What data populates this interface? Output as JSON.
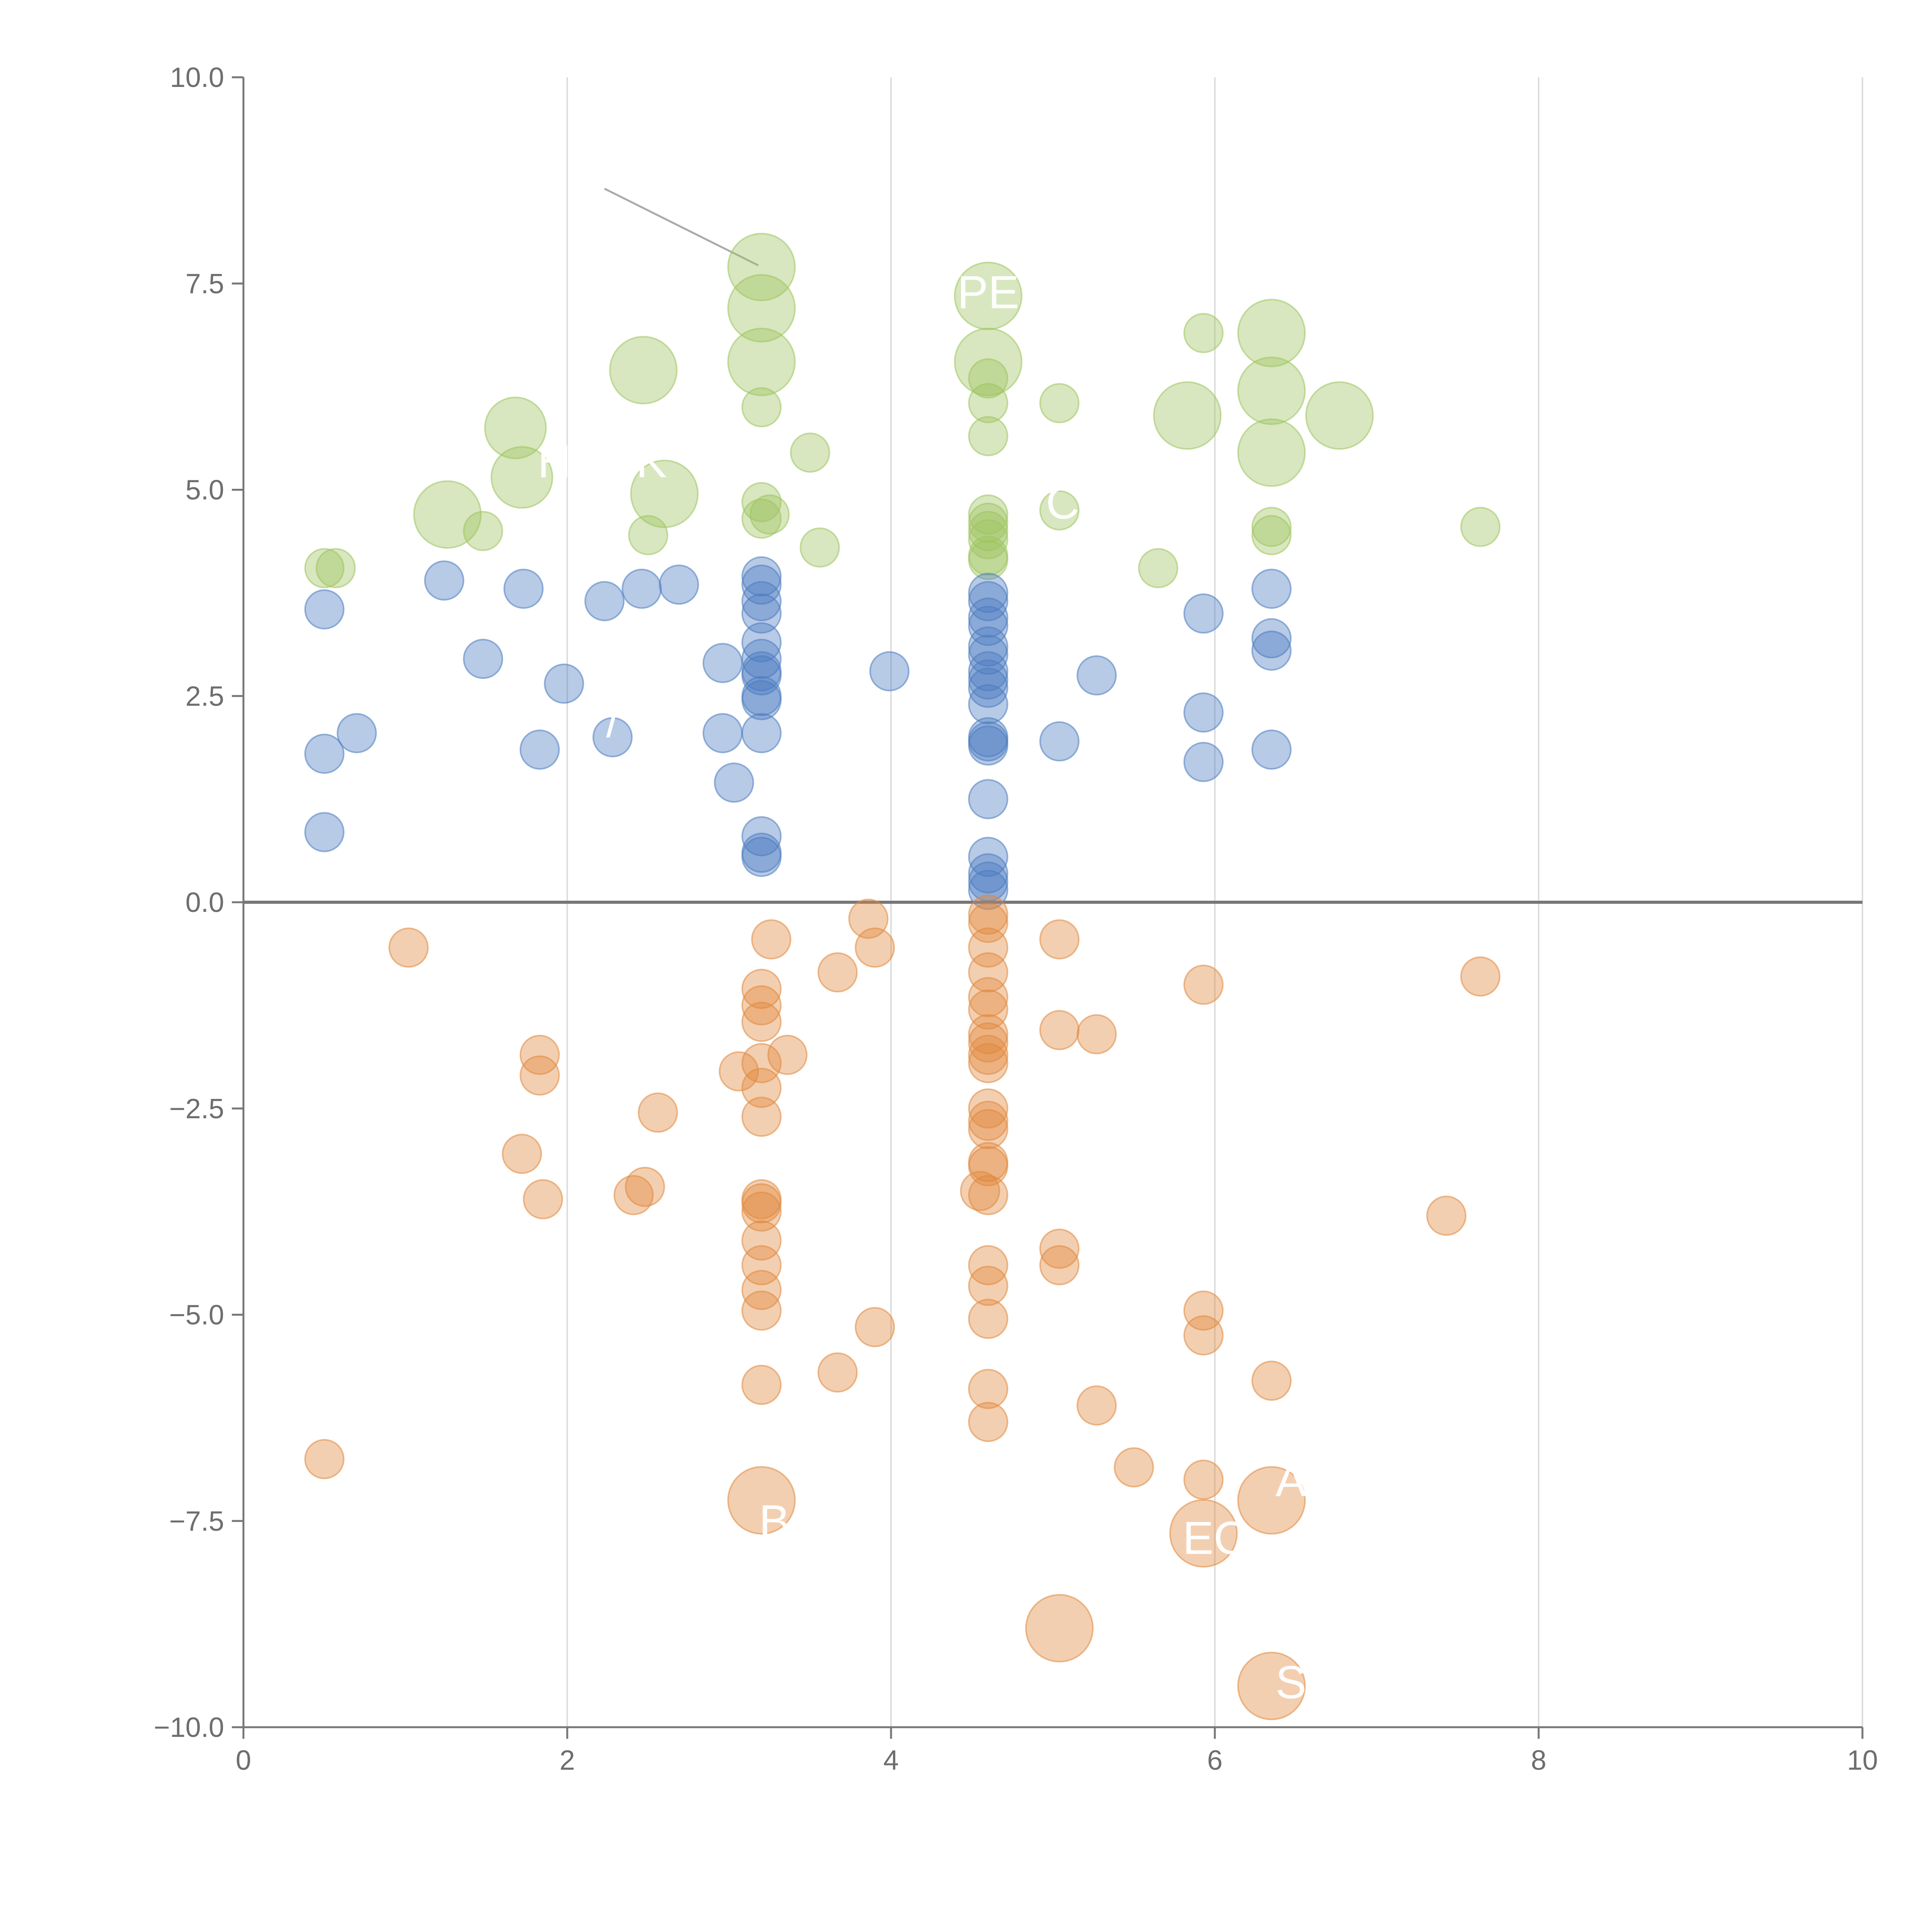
{
  "chart_data": {
    "type": "scatter",
    "title": "",
    "xlabel": "",
    "ylabel": "",
    "xlim": [
      0,
      10
    ],
    "ylim": [
      -10,
      10
    ],
    "grid": "x-only",
    "x_ticks": [
      0,
      2,
      4,
      6,
      8,
      10
    ],
    "x_tick_labels": [
      "0",
      "2",
      "4",
      "6",
      "8",
      "10"
    ],
    "y_ticks": [
      -10,
      -7.5,
      -5,
      -2.5,
      0,
      2.5,
      5,
      7.5,
      10
    ],
    "y_tick_labels": [
      "−10.0",
      "−7.5",
      "−5.0",
      "−2.5",
      "0.0",
      "2.5",
      "5.0",
      "7.5",
      "10.0"
    ],
    "baseline": 0,
    "colors": {
      "green": "#9dc45f",
      "blue": "#4a7bc0",
      "orange": "#e0883c",
      "axis": "#777777",
      "grid": "#dddddd",
      "leader": "#aaaaaa",
      "label": "#ffffff"
    },
    "series": [
      {
        "name": "green",
        "color": "#9dc45f",
        "points": [
          {
            "x": 3.2,
            "y": 7.7,
            "s": 3
          },
          {
            "x": 3.2,
            "y": 7.2,
            "s": 3
          },
          {
            "x": 3.2,
            "y": 6.55,
            "s": 3
          },
          {
            "x": 3.2,
            "y": 6.0,
            "s": 1
          },
          {
            "x": 4.6,
            "y": 7.35,
            "s": 3
          },
          {
            "x": 4.6,
            "y": 6.55,
            "s": 3
          },
          {
            "x": 4.6,
            "y": 6.35,
            "s": 1
          },
          {
            "x": 4.6,
            "y": 6.05,
            "s": 1
          },
          {
            "x": 4.6,
            "y": 5.65,
            "s": 1
          },
          {
            "x": 4.6,
            "y": 4.7,
            "s": 1
          },
          {
            "x": 4.6,
            "y": 4.6,
            "s": 1
          },
          {
            "x": 4.6,
            "y": 4.5,
            "s": 1
          },
          {
            "x": 4.6,
            "y": 4.4,
            "s": 1
          },
          {
            "x": 4.6,
            "y": 4.2,
            "s": 1
          },
          {
            "x": 4.6,
            "y": 4.15,
            "s": 1
          },
          {
            "x": 2.47,
            "y": 6.45,
            "s": 3
          },
          {
            "x": 1.68,
            "y": 5.75,
            "s": 2.5
          },
          {
            "x": 1.72,
            "y": 5.15,
            "s": 2.5
          },
          {
            "x": 1.26,
            "y": 4.7,
            "s": 3
          },
          {
            "x": 1.48,
            "y": 4.5,
            "s": 1
          },
          {
            "x": 2.6,
            "y": 4.95,
            "s": 3
          },
          {
            "x": 2.5,
            "y": 4.45,
            "s": 1
          },
          {
            "x": 0.5,
            "y": 4.05,
            "s": 1
          },
          {
            "x": 0.57,
            "y": 4.05,
            "s": 1
          },
          {
            "x": 3.5,
            "y": 5.45,
            "s": 1
          },
          {
            "x": 3.56,
            "y": 4.3,
            "s": 1
          },
          {
            "x": 3.2,
            "y": 4.85,
            "s": 1
          },
          {
            "x": 3.2,
            "y": 4.65,
            "s": 1
          },
          {
            "x": 3.25,
            "y": 4.7,
            "s": 1
          },
          {
            "x": 5.04,
            "y": 6.05,
            "s": 1
          },
          {
            "x": 5.04,
            "y": 4.75,
            "s": 1
          },
          {
            "x": 5.65,
            "y": 4.05,
            "s": 1
          },
          {
            "x": 5.83,
            "y": 5.9,
            "s": 3
          },
          {
            "x": 5.93,
            "y": 6.9,
            "s": 1
          },
          {
            "x": 6.35,
            "y": 6.9,
            "s": 3
          },
          {
            "x": 6.35,
            "y": 6.2,
            "s": 3
          },
          {
            "x": 6.35,
            "y": 5.45,
            "s": 3
          },
          {
            "x": 6.35,
            "y": 4.55,
            "s": 1
          },
          {
            "x": 6.35,
            "y": 4.45,
            "s": 1
          },
          {
            "x": 6.77,
            "y": 5.9,
            "s": 3
          },
          {
            "x": 7.64,
            "y": 4.55,
            "s": 1
          }
        ]
      },
      {
        "name": "blue",
        "color": "#4a7bc0",
        "points": [
          {
            "x": 0.5,
            "y": 3.55,
            "s": 1
          },
          {
            "x": 0.5,
            "y": 1.8,
            "s": 1
          },
          {
            "x": 0.5,
            "y": 0.85,
            "s": 1
          },
          {
            "x": 0.7,
            "y": 2.05,
            "s": 1
          },
          {
            "x": 1.24,
            "y": 3.9,
            "s": 1
          },
          {
            "x": 1.48,
            "y": 2.95,
            "s": 1
          },
          {
            "x": 1.73,
            "y": 3.8,
            "s": 1
          },
          {
            "x": 1.83,
            "y": 1.85,
            "s": 1
          },
          {
            "x": 1.98,
            "y": 2.65,
            "s": 1
          },
          {
            "x": 2.23,
            "y": 3.65,
            "s": 1
          },
          {
            "x": 2.28,
            "y": 2.0,
            "s": 1
          },
          {
            "x": 2.46,
            "y": 3.8,
            "s": 1
          },
          {
            "x": 2.69,
            "y": 3.85,
            "s": 1
          },
          {
            "x": 2.96,
            "y": 2.9,
            "s": 1
          },
          {
            "x": 2.96,
            "y": 2.05,
            "s": 1
          },
          {
            "x": 3.03,
            "y": 1.45,
            "s": 1
          },
          {
            "x": 3.2,
            "y": 3.95,
            "s": 1
          },
          {
            "x": 3.2,
            "y": 3.85,
            "s": 1
          },
          {
            "x": 3.2,
            "y": 3.65,
            "s": 1
          },
          {
            "x": 3.2,
            "y": 3.5,
            "s": 1
          },
          {
            "x": 3.2,
            "y": 3.15,
            "s": 1
          },
          {
            "x": 3.2,
            "y": 2.95,
            "s": 1
          },
          {
            "x": 3.2,
            "y": 2.8,
            "s": 1
          },
          {
            "x": 3.2,
            "y": 2.75,
            "s": 1
          },
          {
            "x": 3.2,
            "y": 2.5,
            "s": 1
          },
          {
            "x": 3.2,
            "y": 2.45,
            "s": 1
          },
          {
            "x": 3.2,
            "y": 2.05,
            "s": 1
          },
          {
            "x": 3.2,
            "y": 0.8,
            "s": 1
          },
          {
            "x": 3.2,
            "y": 0.6,
            "s": 1
          },
          {
            "x": 3.2,
            "y": 0.55,
            "s": 1
          },
          {
            "x": 3.99,
            "y": 2.8,
            "s": 1
          },
          {
            "x": 4.6,
            "y": 3.75,
            "s": 1
          },
          {
            "x": 4.6,
            "y": 3.65,
            "s": 1
          },
          {
            "x": 4.6,
            "y": 3.45,
            "s": 1
          },
          {
            "x": 4.6,
            "y": 3.35,
            "s": 1
          },
          {
            "x": 4.6,
            "y": 3.1,
            "s": 1
          },
          {
            "x": 4.6,
            "y": 3.0,
            "s": 1
          },
          {
            "x": 4.6,
            "y": 2.8,
            "s": 1
          },
          {
            "x": 4.6,
            "y": 2.7,
            "s": 1
          },
          {
            "x": 4.6,
            "y": 2.6,
            "s": 1
          },
          {
            "x": 4.6,
            "y": 2.4,
            "s": 1
          },
          {
            "x": 4.6,
            "y": 2.0,
            "s": 1
          },
          {
            "x": 4.6,
            "y": 1.95,
            "s": 1
          },
          {
            "x": 4.6,
            "y": 1.9,
            "s": 1
          },
          {
            "x": 4.6,
            "y": 1.25,
            "s": 1
          },
          {
            "x": 4.6,
            "y": 0.55,
            "s": 1
          },
          {
            "x": 4.6,
            "y": 0.35,
            "s": 1
          },
          {
            "x": 4.6,
            "y": 0.25,
            "s": 1
          },
          {
            "x": 4.6,
            "y": 0.15,
            "s": 1
          },
          {
            "x": 5.04,
            "y": 1.95,
            "s": 1
          },
          {
            "x": 5.27,
            "y": 2.75,
            "s": 1
          },
          {
            "x": 5.93,
            "y": 3.5,
            "s": 1
          },
          {
            "x": 5.93,
            "y": 2.3,
            "s": 1
          },
          {
            "x": 5.93,
            "y": 1.7,
            "s": 1
          },
          {
            "x": 6.35,
            "y": 3.8,
            "s": 1
          },
          {
            "x": 6.35,
            "y": 3.2,
            "s": 1
          },
          {
            "x": 6.35,
            "y": 3.05,
            "s": 1
          },
          {
            "x": 6.35,
            "y": 1.85,
            "s": 1
          }
        ]
      },
      {
        "name": "orange",
        "color": "#e0883c",
        "points": [
          {
            "x": 1.02,
            "y": -0.55,
            "s": 1
          },
          {
            "x": 0.5,
            "y": -6.75,
            "s": 1
          },
          {
            "x": 1.83,
            "y": -1.85,
            "s": 1
          },
          {
            "x": 1.83,
            "y": -2.1,
            "s": 1
          },
          {
            "x": 1.72,
            "y": -3.05,
            "s": 1
          },
          {
            "x": 1.85,
            "y": -3.6,
            "s": 1
          },
          {
            "x": 2.56,
            "y": -2.55,
            "s": 1
          },
          {
            "x": 2.48,
            "y": -3.45,
            "s": 1
          },
          {
            "x": 2.41,
            "y": -3.55,
            "s": 1
          },
          {
            "x": 3.26,
            "y": -0.45,
            "s": 1
          },
          {
            "x": 3.2,
            "y": -1.05,
            "s": 1
          },
          {
            "x": 3.2,
            "y": -1.25,
            "s": 1
          },
          {
            "x": 3.2,
            "y": -1.45,
            "s": 1
          },
          {
            "x": 3.2,
            "y": -1.95,
            "s": 1
          },
          {
            "x": 3.06,
            "y": -2.05,
            "s": 1
          },
          {
            "x": 3.36,
            "y": -1.85,
            "s": 1
          },
          {
            "x": 3.2,
            "y": -2.25,
            "s": 1
          },
          {
            "x": 3.2,
            "y": -2.6,
            "s": 1
          },
          {
            "x": 3.2,
            "y": -3.6,
            "s": 1
          },
          {
            "x": 3.2,
            "y": -3.65,
            "s": 1
          },
          {
            "x": 3.2,
            "y": -3.75,
            "s": 1
          },
          {
            "x": 3.2,
            "y": -4.1,
            "s": 1
          },
          {
            "x": 3.2,
            "y": -4.4,
            "s": 1
          },
          {
            "x": 3.2,
            "y": -4.7,
            "s": 1
          },
          {
            "x": 3.2,
            "y": -4.95,
            "s": 1
          },
          {
            "x": 3.2,
            "y": -5.85,
            "s": 1
          },
          {
            "x": 3.2,
            "y": -7.25,
            "s": 3
          },
          {
            "x": 3.67,
            "y": -0.85,
            "s": 1
          },
          {
            "x": 3.86,
            "y": -0.2,
            "s": 1
          },
          {
            "x": 3.9,
            "y": -0.55,
            "s": 1
          },
          {
            "x": 3.67,
            "y": -5.7,
            "s": 1
          },
          {
            "x": 3.9,
            "y": -5.15,
            "s": 1
          },
          {
            "x": 4.6,
            "y": -0.15,
            "s": 1
          },
          {
            "x": 4.6,
            "y": -0.25,
            "s": 1
          },
          {
            "x": 4.6,
            "y": -0.55,
            "s": 1
          },
          {
            "x": 4.6,
            "y": -0.85,
            "s": 1
          },
          {
            "x": 4.6,
            "y": -1.15,
            "s": 1
          },
          {
            "x": 4.6,
            "y": -1.3,
            "s": 1
          },
          {
            "x": 4.6,
            "y": -1.6,
            "s": 1
          },
          {
            "x": 4.6,
            "y": -1.7,
            "s": 1
          },
          {
            "x": 4.6,
            "y": -1.85,
            "s": 1
          },
          {
            "x": 4.6,
            "y": -1.95,
            "s": 1
          },
          {
            "x": 4.6,
            "y": -2.5,
            "s": 1
          },
          {
            "x": 4.6,
            "y": -2.65,
            "s": 1
          },
          {
            "x": 4.6,
            "y": -2.75,
            "s": 1
          },
          {
            "x": 4.6,
            "y": -3.15,
            "s": 1
          },
          {
            "x": 4.6,
            "y": -3.2,
            "s": 1
          },
          {
            "x": 4.55,
            "y": -3.5,
            "s": 1
          },
          {
            "x": 4.6,
            "y": -3.55,
            "s": 1
          },
          {
            "x": 4.6,
            "y": -4.4,
            "s": 1
          },
          {
            "x": 4.6,
            "y": -4.65,
            "s": 1
          },
          {
            "x": 4.6,
            "y": -5.05,
            "s": 1
          },
          {
            "x": 4.6,
            "y": -5.9,
            "s": 1
          },
          {
            "x": 4.6,
            "y": -6.3,
            "s": 1
          },
          {
            "x": 5.04,
            "y": -0.45,
            "s": 1
          },
          {
            "x": 5.04,
            "y": -1.55,
            "s": 1
          },
          {
            "x": 5.27,
            "y": -1.6,
            "s": 1
          },
          {
            "x": 5.04,
            "y": -4.2,
            "s": 1
          },
          {
            "x": 5.04,
            "y": -4.4,
            "s": 1
          },
          {
            "x": 5.27,
            "y": -6.1,
            "s": 1
          },
          {
            "x": 5.5,
            "y": -6.85,
            "s": 1
          },
          {
            "x": 5.04,
            "y": -8.8,
            "s": 3
          },
          {
            "x": 5.93,
            "y": -1.0,
            "s": 1
          },
          {
            "x": 5.93,
            "y": -4.95,
            "s": 1
          },
          {
            "x": 5.93,
            "y": -5.25,
            "s": 1
          },
          {
            "x": 5.93,
            "y": -7.0,
            "s": 1
          },
          {
            "x": 5.93,
            "y": -7.65,
            "s": 3
          },
          {
            "x": 6.35,
            "y": -5.8,
            "s": 1
          },
          {
            "x": 6.35,
            "y": -7.25,
            "s": 3
          },
          {
            "x": 6.35,
            "y": -9.5,
            "s": 3
          },
          {
            "x": 7.43,
            "y": -3.8,
            "s": 1
          },
          {
            "x": 7.64,
            "y": -0.9,
            "s": 1
          }
        ]
      }
    ],
    "labels": [
      {
        "text": "PE",
        "x": 4.6,
        "y": 7.35
      },
      {
        "text": "H",
        "x": 1.92,
        "y": 5.3
      },
      {
        "text": "K",
        "x": 2.52,
        "y": 5.3
      },
      {
        "text": "C",
        "x": 5.06,
        "y": 4.8
      },
      {
        "text": "/",
        "x": 2.28,
        "y": 2.15
      },
      {
        "text": "B",
        "x": 3.28,
        "y": -7.55
      },
      {
        "text": "EC",
        "x": 6.0,
        "y": -7.75
      },
      {
        "text": "S",
        "x": 6.47,
        "y": -9.5
      },
      {
        "text": "A",
        "x": 6.47,
        "y": -7.05
      }
    ],
    "leader_line": {
      "x1": 2.23,
      "y1": 8.65,
      "x2": 3.18,
      "y2": 7.72
    }
  }
}
